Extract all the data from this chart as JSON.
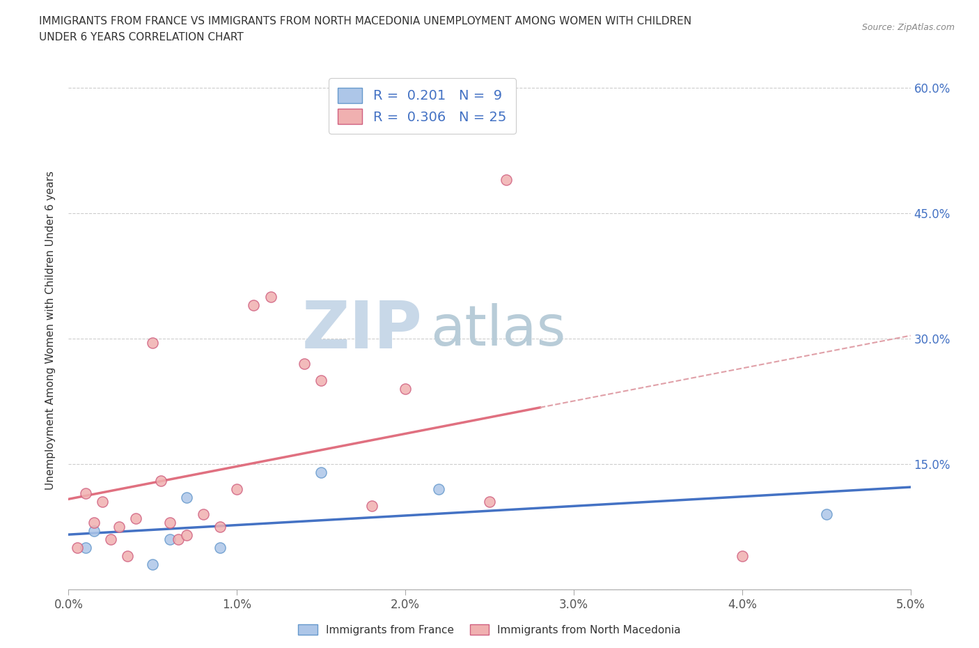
{
  "title_line1": "IMMIGRANTS FROM FRANCE VS IMMIGRANTS FROM NORTH MACEDONIA UNEMPLOYMENT AMONG WOMEN WITH CHILDREN",
  "title_line2": "UNDER 6 YEARS CORRELATION CHART",
  "source": "Source: ZipAtlas.com",
  "xlim": [
    0.0,
    0.05
  ],
  "ylim": [
    0.0,
    0.62
  ],
  "france_scatter_x": [
    0.001,
    0.0015,
    0.005,
    0.006,
    0.007,
    0.009,
    0.015,
    0.022,
    0.045
  ],
  "france_scatter_y": [
    0.05,
    0.07,
    0.03,
    0.06,
    0.11,
    0.05,
    0.14,
    0.12,
    0.09
  ],
  "macedonia_scatter_x": [
    0.0005,
    0.001,
    0.0015,
    0.002,
    0.0025,
    0.003,
    0.0035,
    0.004,
    0.005,
    0.0055,
    0.006,
    0.0065,
    0.007,
    0.008,
    0.009,
    0.01,
    0.011,
    0.012,
    0.014,
    0.015,
    0.018,
    0.02,
    0.025,
    0.026,
    0.04
  ],
  "macedonia_scatter_y": [
    0.05,
    0.115,
    0.08,
    0.105,
    0.06,
    0.075,
    0.04,
    0.085,
    0.295,
    0.13,
    0.08,
    0.06,
    0.065,
    0.09,
    0.075,
    0.12,
    0.34,
    0.35,
    0.27,
    0.25,
    0.1,
    0.24,
    0.105,
    0.49,
    0.04
  ],
  "france_R": 0.201,
  "france_N": 9,
  "macedonia_R": 0.306,
  "macedonia_N": 25,
  "france_scatter_color": "#adc6e8",
  "france_scatter_edge": "#6699cc",
  "macedonia_scatter_color": "#f0b0b0",
  "macedonia_scatter_edge": "#d06080",
  "france_line_color": "#4472c4",
  "macedonia_line_color": "#e07080",
  "macedonia_dash_color": "#e0a0a8",
  "watermark_zip_color": "#c8d8e8",
  "watermark_atlas_color": "#b8ccd8",
  "legend_label_france": "Immigrants from France",
  "legend_label_macedonia": "Immigrants from North Macedonia",
  "background_color": "#ffffff",
  "grid_color": "#cccccc",
  "right_tick_color": "#4472c4",
  "title_color": "#333333",
  "source_color": "#888888"
}
